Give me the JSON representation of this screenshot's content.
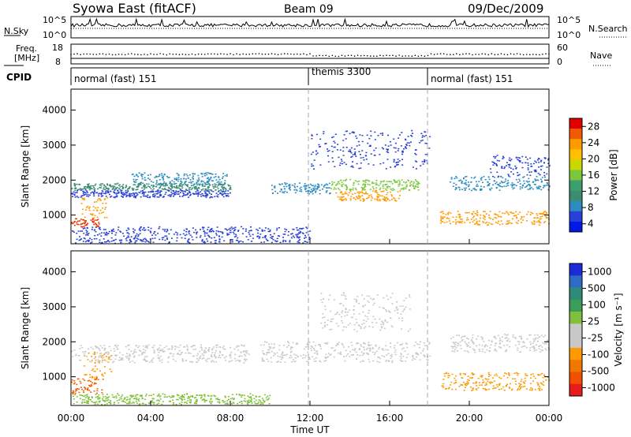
{
  "header": {
    "station": "Syowa East (fitACF)",
    "beam": "Beam 09",
    "date": "09/Dec/2009"
  },
  "noise_panel": {
    "left_label": "N.Sky",
    "right_label": "N.Search",
    "left_ticks": [
      "10^5",
      "10^0"
    ],
    "right_ticks": [
      "10^5",
      "10^0"
    ]
  },
  "freq_panel": {
    "left_label_1": "Freq.",
    "left_label_2": "[MHz]",
    "right_label": "Nave",
    "left_ticks": [
      "18",
      "8"
    ],
    "right_ticks": [
      "60",
      "0"
    ]
  },
  "cpid_panel": {
    "label": "CPID",
    "segments": [
      {
        "name": "normal (fast) 151",
        "start_hour": 0,
        "end_hour": 12
      },
      {
        "name": "themis 3300",
        "start_hour": 12,
        "end_hour": 18
      },
      {
        "name": "normal (fast) 151",
        "start_hour": 18,
        "end_hour": 24
      }
    ]
  },
  "power_colorbar": {
    "label": "Power [dB]",
    "ticks": [
      "28",
      "24",
      "20",
      "16",
      "12",
      "8",
      "4"
    ],
    "colors": [
      "#e00000",
      "#f05a00",
      "#ff9a00",
      "#ffc000",
      "#c8d800",
      "#7cc83c",
      "#3aa06e",
      "#3c8c6e",
      "#2c8cc0",
      "#2840d8",
      "#0018e8"
    ]
  },
  "velocity_colorbar": {
    "label": "Velocity [m s⁻¹]",
    "ticks": [
      "1000",
      "500",
      "100",
      "25",
      "-25",
      "-100",
      "-500",
      "-1000"
    ],
    "colors": [
      "#1a2cd8",
      "#2c6cc4",
      "#2c8c78",
      "#3c9c5a",
      "#80c03c",
      "#c8c8c8",
      "#c8c8c8",
      "#ff9a00",
      "#f07800",
      "#f05000",
      "#e81c1c"
    ]
  },
  "chart_data": {
    "type": "heatmap",
    "xlabel": "Time UT",
    "x_ticks": [
      "00:00",
      "04:00",
      "08:00",
      "12:00",
      "16:00",
      "20:00",
      "00:00"
    ],
    "xlim_hours": [
      0,
      24
    ],
    "panels": [
      {
        "name": "power",
        "ylabel": "Slant Range [km]",
        "y_ticks": [
          "1000",
          "2000",
          "3000",
          "4000"
        ],
        "ylim_km": [
          180,
          4600
        ],
        "bands": [
          {
            "t0": 0.0,
            "t1": 1.4,
            "r0": 650,
            "r1": 900,
            "color": "#e83c00"
          },
          {
            "t0": 0.5,
            "t1": 1.8,
            "r0": 900,
            "r1": 1500,
            "color": "#ff9a00"
          },
          {
            "t0": 0.0,
            "t1": 8.0,
            "r0": 1500,
            "r1": 1700,
            "color": "#2840d8"
          },
          {
            "t0": 0.0,
            "t1": 8.0,
            "r0": 1700,
            "r1": 1900,
            "color": "#3c8c6e"
          },
          {
            "t0": 3.0,
            "t1": 7.8,
            "r0": 1850,
            "r1": 2200,
            "color": "#2c8cc0"
          },
          {
            "t0": 10.0,
            "t1": 13.0,
            "r0": 1600,
            "r1": 1900,
            "color": "#2c8cc0"
          },
          {
            "t0": 13.2,
            "t1": 16.5,
            "r0": 1400,
            "r1": 1700,
            "color": "#ff9a00"
          },
          {
            "t0": 13.0,
            "t1": 17.5,
            "r0": 1700,
            "r1": 2000,
            "color": "#7cc83c"
          },
          {
            "t0": 12.0,
            "t1": 18.0,
            "r0": 2300,
            "r1": 3400,
            "color": "#2840d8"
          },
          {
            "t0": 18.5,
            "t1": 24.0,
            "r0": 700,
            "r1": 1100,
            "color": "#ff9a00"
          },
          {
            "t0": 19.0,
            "t1": 24.0,
            "r0": 1700,
            "r1": 2100,
            "color": "#2c8cc0"
          },
          {
            "t0": 21.0,
            "t1": 24.0,
            "r0": 2100,
            "r1": 2700,
            "color": "#2840d8"
          },
          {
            "t0": 0.0,
            "t1": 12.0,
            "r0": 200,
            "r1": 650,
            "color": "#2840d8"
          }
        ]
      },
      {
        "name": "velocity",
        "ylabel": "Slant Range [km]",
        "y_ticks": [
          "1000",
          "2000",
          "3000",
          "4000"
        ],
        "ylim_km": [
          180,
          4600
        ],
        "bands": [
          {
            "t0": 0.0,
            "t1": 1.6,
            "r0": 500,
            "r1": 950,
            "color": "#f06000"
          },
          {
            "t0": 0.6,
            "t1": 2.0,
            "r0": 950,
            "r1": 1700,
            "color": "#ff9a00"
          },
          {
            "t0": 0.0,
            "t1": 9.0,
            "r0": 1400,
            "r1": 1900,
            "color": "#c8c8c8"
          },
          {
            "t0": 9.5,
            "t1": 18.0,
            "r0": 1400,
            "r1": 2000,
            "color": "#c8c8c8"
          },
          {
            "t0": 12.5,
            "t1": 17.0,
            "r0": 2300,
            "r1": 3400,
            "color": "#c8c8c8"
          },
          {
            "t0": 18.5,
            "t1": 24.0,
            "r0": 600,
            "r1": 1100,
            "color": "#ff9a00"
          },
          {
            "t0": 19.0,
            "t1": 24.0,
            "r0": 1700,
            "r1": 2200,
            "color": "#c8c8c8"
          },
          {
            "t0": 0.0,
            "t1": 10.0,
            "r0": 200,
            "r1": 500,
            "color": "#80c03c"
          }
        ]
      }
    ]
  }
}
